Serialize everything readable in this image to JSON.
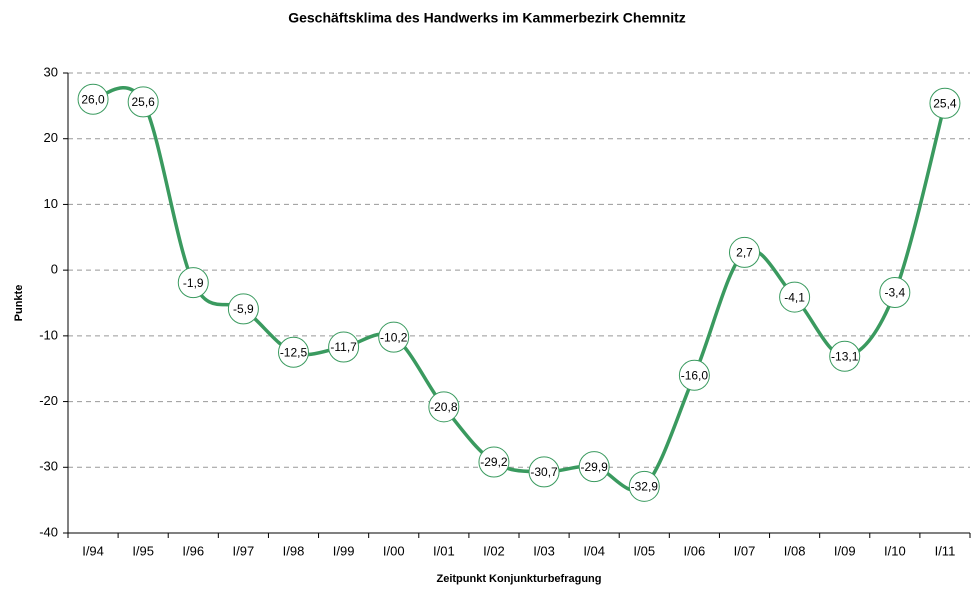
{
  "chart_data": {
    "type": "line",
    "title": "Geschäftsklima des Handwerks im Kammerbezirk Chemnitz",
    "x_label": "Zeitpunkt Konjunkturbefragung",
    "y_label": "Punkte",
    "categories": [
      "I/94",
      "I/95",
      "I/96",
      "I/97",
      "I/98",
      "I/99",
      "I/00",
      "I/01",
      "I/02",
      "I/03",
      "I/04",
      "I/05",
      "I/06",
      "I/07",
      "I/08",
      "I/09",
      "I/10",
      "I/11"
    ],
    "series": [
      {
        "name": "Geschäftsklima",
        "color": "#3a9a5f",
        "values": [
          26.0,
          25.6,
          -1.9,
          -5.9,
          -12.5,
          -11.7,
          -10.2,
          -20.8,
          -29.2,
          -30.7,
          -29.9,
          -32.9,
          -16.0,
          2.7,
          -4.1,
          -13.1,
          -3.4,
          25.4
        ],
        "value_labels": [
          "26,0",
          "25,6",
          "-1,9",
          "-5,9",
          "-12,5",
          "-11,7",
          "-10,2",
          "-20,8",
          "-29,2",
          "-30,7",
          "-29,9",
          "-32,9",
          "-16,0",
          "2,7",
          "-4,1",
          "-13,1",
          "-3,4",
          "25,4"
        ]
      }
    ],
    "ylim": [
      -40,
      30
    ],
    "yticks": [
      -40,
      -30,
      -20,
      -10,
      0,
      10,
      20,
      30
    ],
    "grid": true
  }
}
